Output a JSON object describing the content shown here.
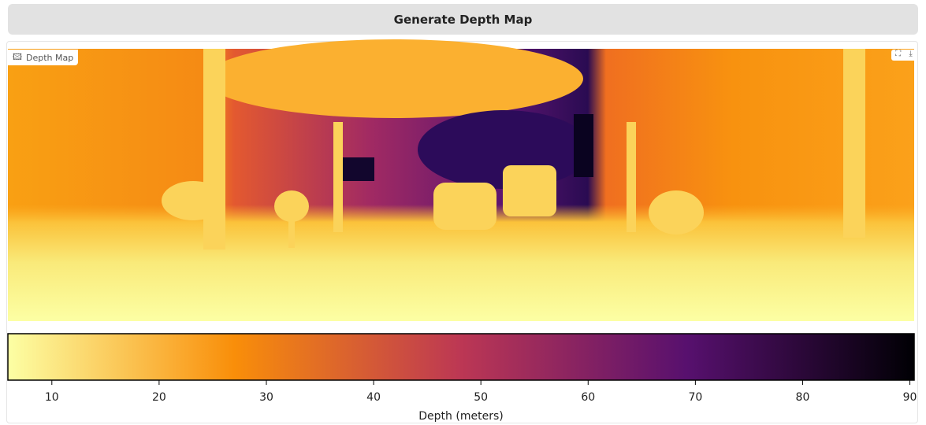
{
  "button": {
    "label": "Generate Depth Map"
  },
  "image_panel": {
    "label": "Depth Map"
  },
  "colorbar": {
    "xlim": [
      5.9,
      90.4
    ],
    "xticks": [
      10,
      20,
      30,
      40,
      50,
      60,
      70,
      80,
      90
    ],
    "xlabel": "Depth (meters)",
    "colormap": [
      "#fcffa4",
      "#f98e09",
      "#bc3754",
      "#57106e",
      "#000004"
    ]
  }
}
